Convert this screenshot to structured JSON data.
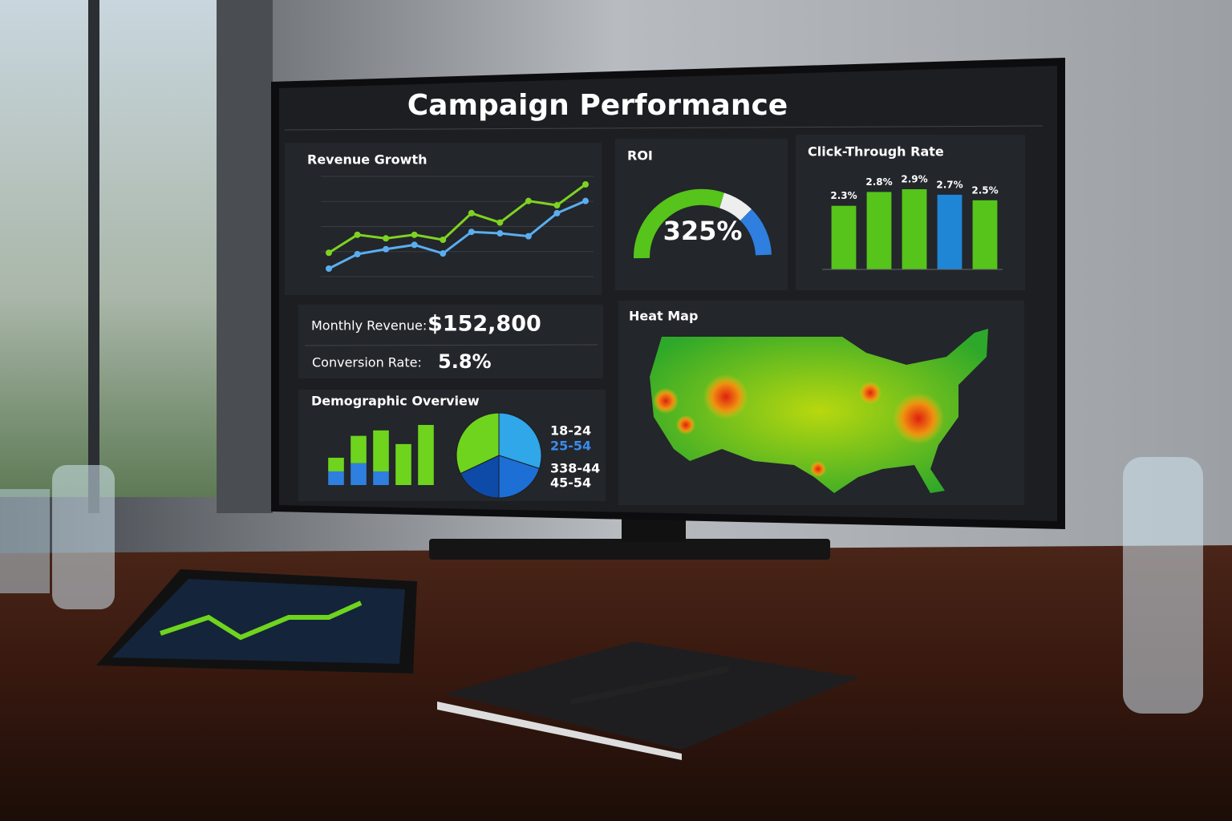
{
  "dashboard": {
    "title": "Campaign Performance",
    "roi": {
      "title": "ROI",
      "value": "325%"
    },
    "metrics": [
      {
        "label": "Monthly Revenue:",
        "value": "$152,800"
      },
      {
        "label": "Conversion Rate:",
        "value": "5.8%"
      }
    ],
    "heat_map": {
      "title": "Heat Map"
    }
  },
  "chart_data": [
    {
      "type": "line",
      "title": "Revenue Growth",
      "categories": [
        null,
        null,
        null,
        null,
        null,
        null,
        null,
        null,
        null,
        null
      ],
      "series": [
        {
          "name": null,
          "color": "#7ed321",
          "values": [
            3,
            5.5,
            5,
            5.5,
            4.8,
            8.5,
            7.2,
            10.2,
            9.6,
            12.5
          ]
        },
        {
          "name": null,
          "color": "#5aaef0",
          "values": [
            0.8,
            2.8,
            3.5,
            4.1,
            2.9,
            5.9,
            5.7,
            5.3,
            8.5,
            10.2
          ]
        }
      ]
    },
    {
      "type": "bar",
      "title": "Click-Through Rate",
      "categories": [
        null,
        null,
        null,
        null,
        null
      ],
      "values": [
        2.3,
        2.8,
        2.9,
        2.7,
        2.5
      ],
      "value_labels": [
        "2.3%",
        "2.8%",
        "2.9%",
        "2.7%",
        "2.5%"
      ],
      "colors": [
        "#56c41a",
        "#56c41a",
        "#56c41a",
        "#1f86d6",
        "#56c41a"
      ]
    },
    {
      "type": "stacked-bar",
      "title": "Demographic Overview",
      "categories": [
        null,
        null,
        null,
        null,
        null
      ],
      "series": [
        {
          "name": null,
          "color": "#2f7fe0",
          "values": [
            1,
            1.6,
            1,
            0,
            0
          ]
        },
        {
          "name": null,
          "color": "#6fd41d",
          "values": [
            1,
            2,
            3,
            3,
            4.4
          ]
        }
      ]
    },
    {
      "type": "pie",
      "categories": [
        "18-24",
        "25-54",
        "338-44",
        "45-54"
      ],
      "values": [
        30,
        20,
        18,
        32
      ],
      "colors": [
        "#2fa7e8",
        "#1d6fd6",
        "#0e4aa8",
        "#6fd41d"
      ]
    }
  ]
}
